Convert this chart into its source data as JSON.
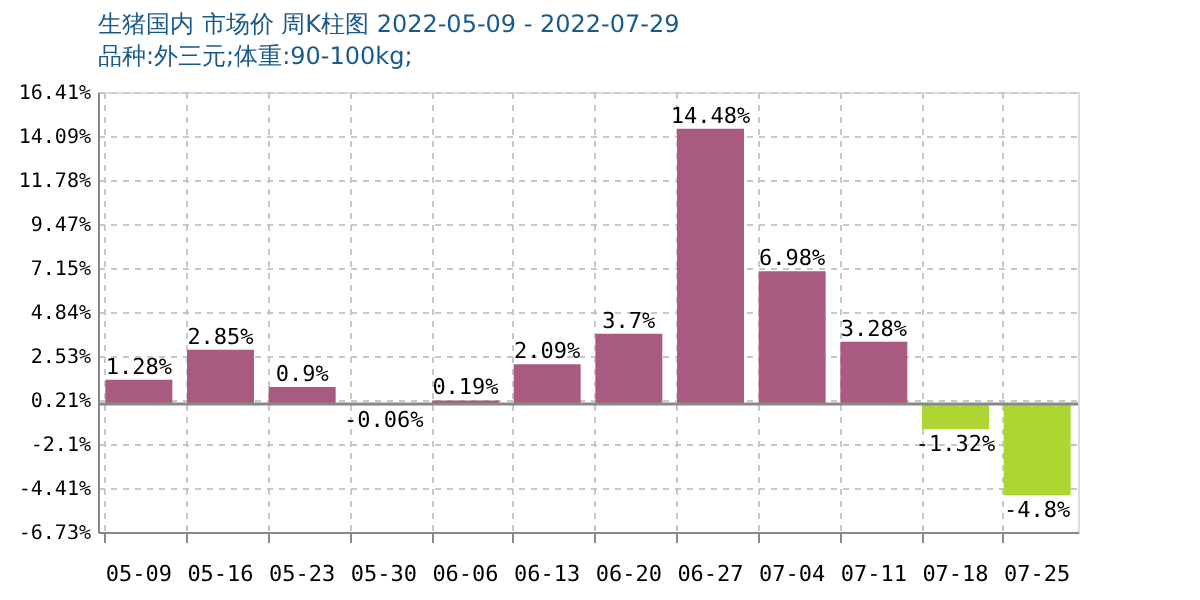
{
  "chart_data": {
    "type": "bar",
    "title": "生猪国内 市场价 周K柱图 2022-05-09 - 2022-07-29",
    "subtitle": "品种:外三元;体重:90-100kg;",
    "categories": [
      "05-09",
      "05-16",
      "05-23",
      "05-30",
      "06-06",
      "06-13",
      "06-20",
      "06-27",
      "07-04",
      "07-11",
      "07-18",
      "07-25"
    ],
    "values": [
      1.28,
      2.85,
      0.9,
      -0.06,
      0.19,
      2.09,
      3.7,
      14.48,
      6.98,
      3.28,
      -1.32,
      -4.8
    ],
    "value_labels": [
      "1.28%",
      "2.85%",
      "0.9%",
      "-0.06%",
      "0.19%",
      "2.09%",
      "3.7%",
      "14.48%",
      "6.98%",
      "3.28%",
      "-1.32%",
      "-4.8%"
    ],
    "colors": [
      "#a85a80",
      "#a85a80",
      "#a85a80",
      "#add633",
      "#a85a80",
      "#a85a80",
      "#a85a80",
      "#a85a80",
      "#a85a80",
      "#a85a80",
      "#add633",
      "#add633"
    ],
    "ylim": [
      -6.73,
      16.41
    ],
    "yticks": [
      {
        "value": -6.73,
        "label": "-6.73%"
      },
      {
        "value": -4.41,
        "label": "-4.41%"
      },
      {
        "value": -2.1,
        "label": "-2.1%"
      },
      {
        "value": 0.21,
        "label": "0.21%"
      },
      {
        "value": 2.53,
        "label": "2.53%"
      },
      {
        "value": 4.84,
        "label": "4.84%"
      },
      {
        "value": 7.15,
        "label": "7.15%"
      },
      {
        "value": 9.47,
        "label": "9.47%"
      },
      {
        "value": 11.78,
        "label": "11.78%"
      },
      {
        "value": 14.09,
        "label": "14.09%"
      },
      {
        "value": 16.41,
        "label": "16.41%"
      }
    ],
    "ref_lines": [
      {
        "axis": "y",
        "value": 0,
        "color": "#888888"
      }
    ],
    "grid": true
  }
}
